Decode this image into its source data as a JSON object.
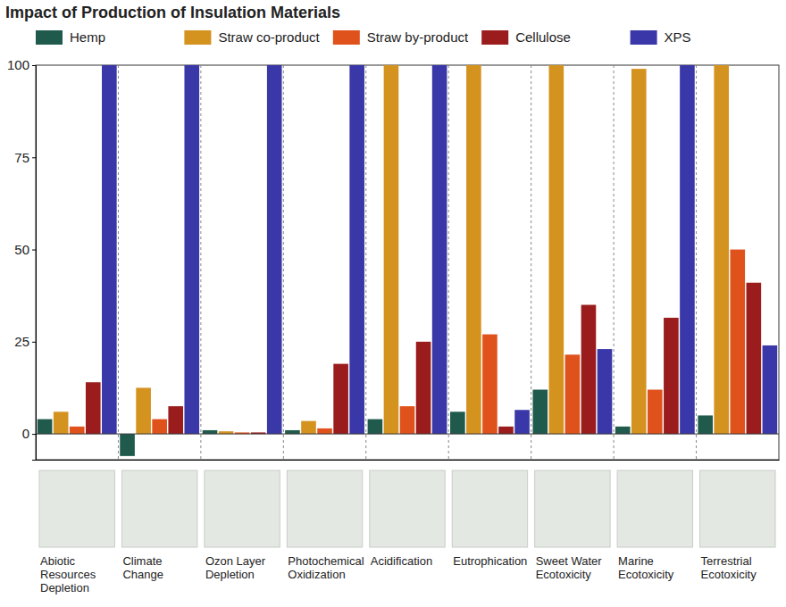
{
  "chart_data": {
    "type": "bar",
    "title": "Impact of Production of Insulation Materials",
    "categories": [
      "Abiotic Resources Depletion",
      "Climate Change",
      "Ozon Layer Depletion",
      "Photochemical Oxidization",
      "Acidification",
      "Eutrophication",
      "Sweet Water Ecotoxicity",
      "Marine Ecotoxicity",
      "Terrestrial Ecotoxicity"
    ],
    "series": [
      {
        "name": "Hemp",
        "color": "#1f5a4c",
        "values": [
          4,
          -6,
          1,
          1,
          4,
          6,
          12,
          2,
          5
        ]
      },
      {
        "name": "Straw co-product",
        "color": "#d4921f",
        "values": [
          6,
          12.5,
          0.7,
          3.5,
          100,
          100,
          100,
          99,
          100
        ]
      },
      {
        "name": "Straw by-product",
        "color": "#e0521c",
        "values": [
          2,
          4,
          0.4,
          1.5,
          7.5,
          27,
          21.5,
          12,
          50
        ]
      },
      {
        "name": "Cellulose",
        "color": "#9b1c1c",
        "values": [
          14,
          7.5,
          0.4,
          19,
          25,
          2,
          35,
          31.5,
          41
        ]
      },
      {
        "name": "XPS",
        "color": "#3a37a8",
        "values": [
          100,
          100,
          100,
          100,
          100,
          6.5,
          23,
          100,
          24
        ]
      }
    ],
    "ylim": [
      -7,
      100
    ],
    "yticks": [
      0,
      25,
      50,
      75,
      100
    ],
    "grid": true,
    "legend": "top"
  }
}
